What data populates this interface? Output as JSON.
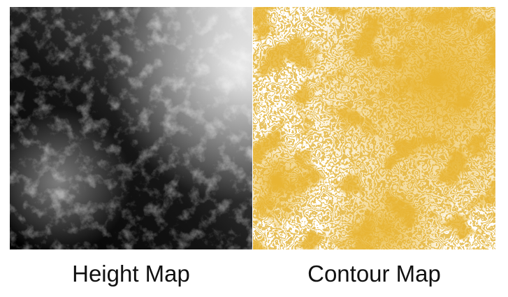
{
  "panels": {
    "height_map": {
      "label": "Height Map",
      "colors": {
        "low": "#000000",
        "high": "#f4f4f4"
      }
    },
    "contour_map": {
      "label": "Contour Map",
      "colors": {
        "fill": "#e8b533",
        "background": "#ffffff",
        "line": "#e0ad2a"
      }
    }
  }
}
